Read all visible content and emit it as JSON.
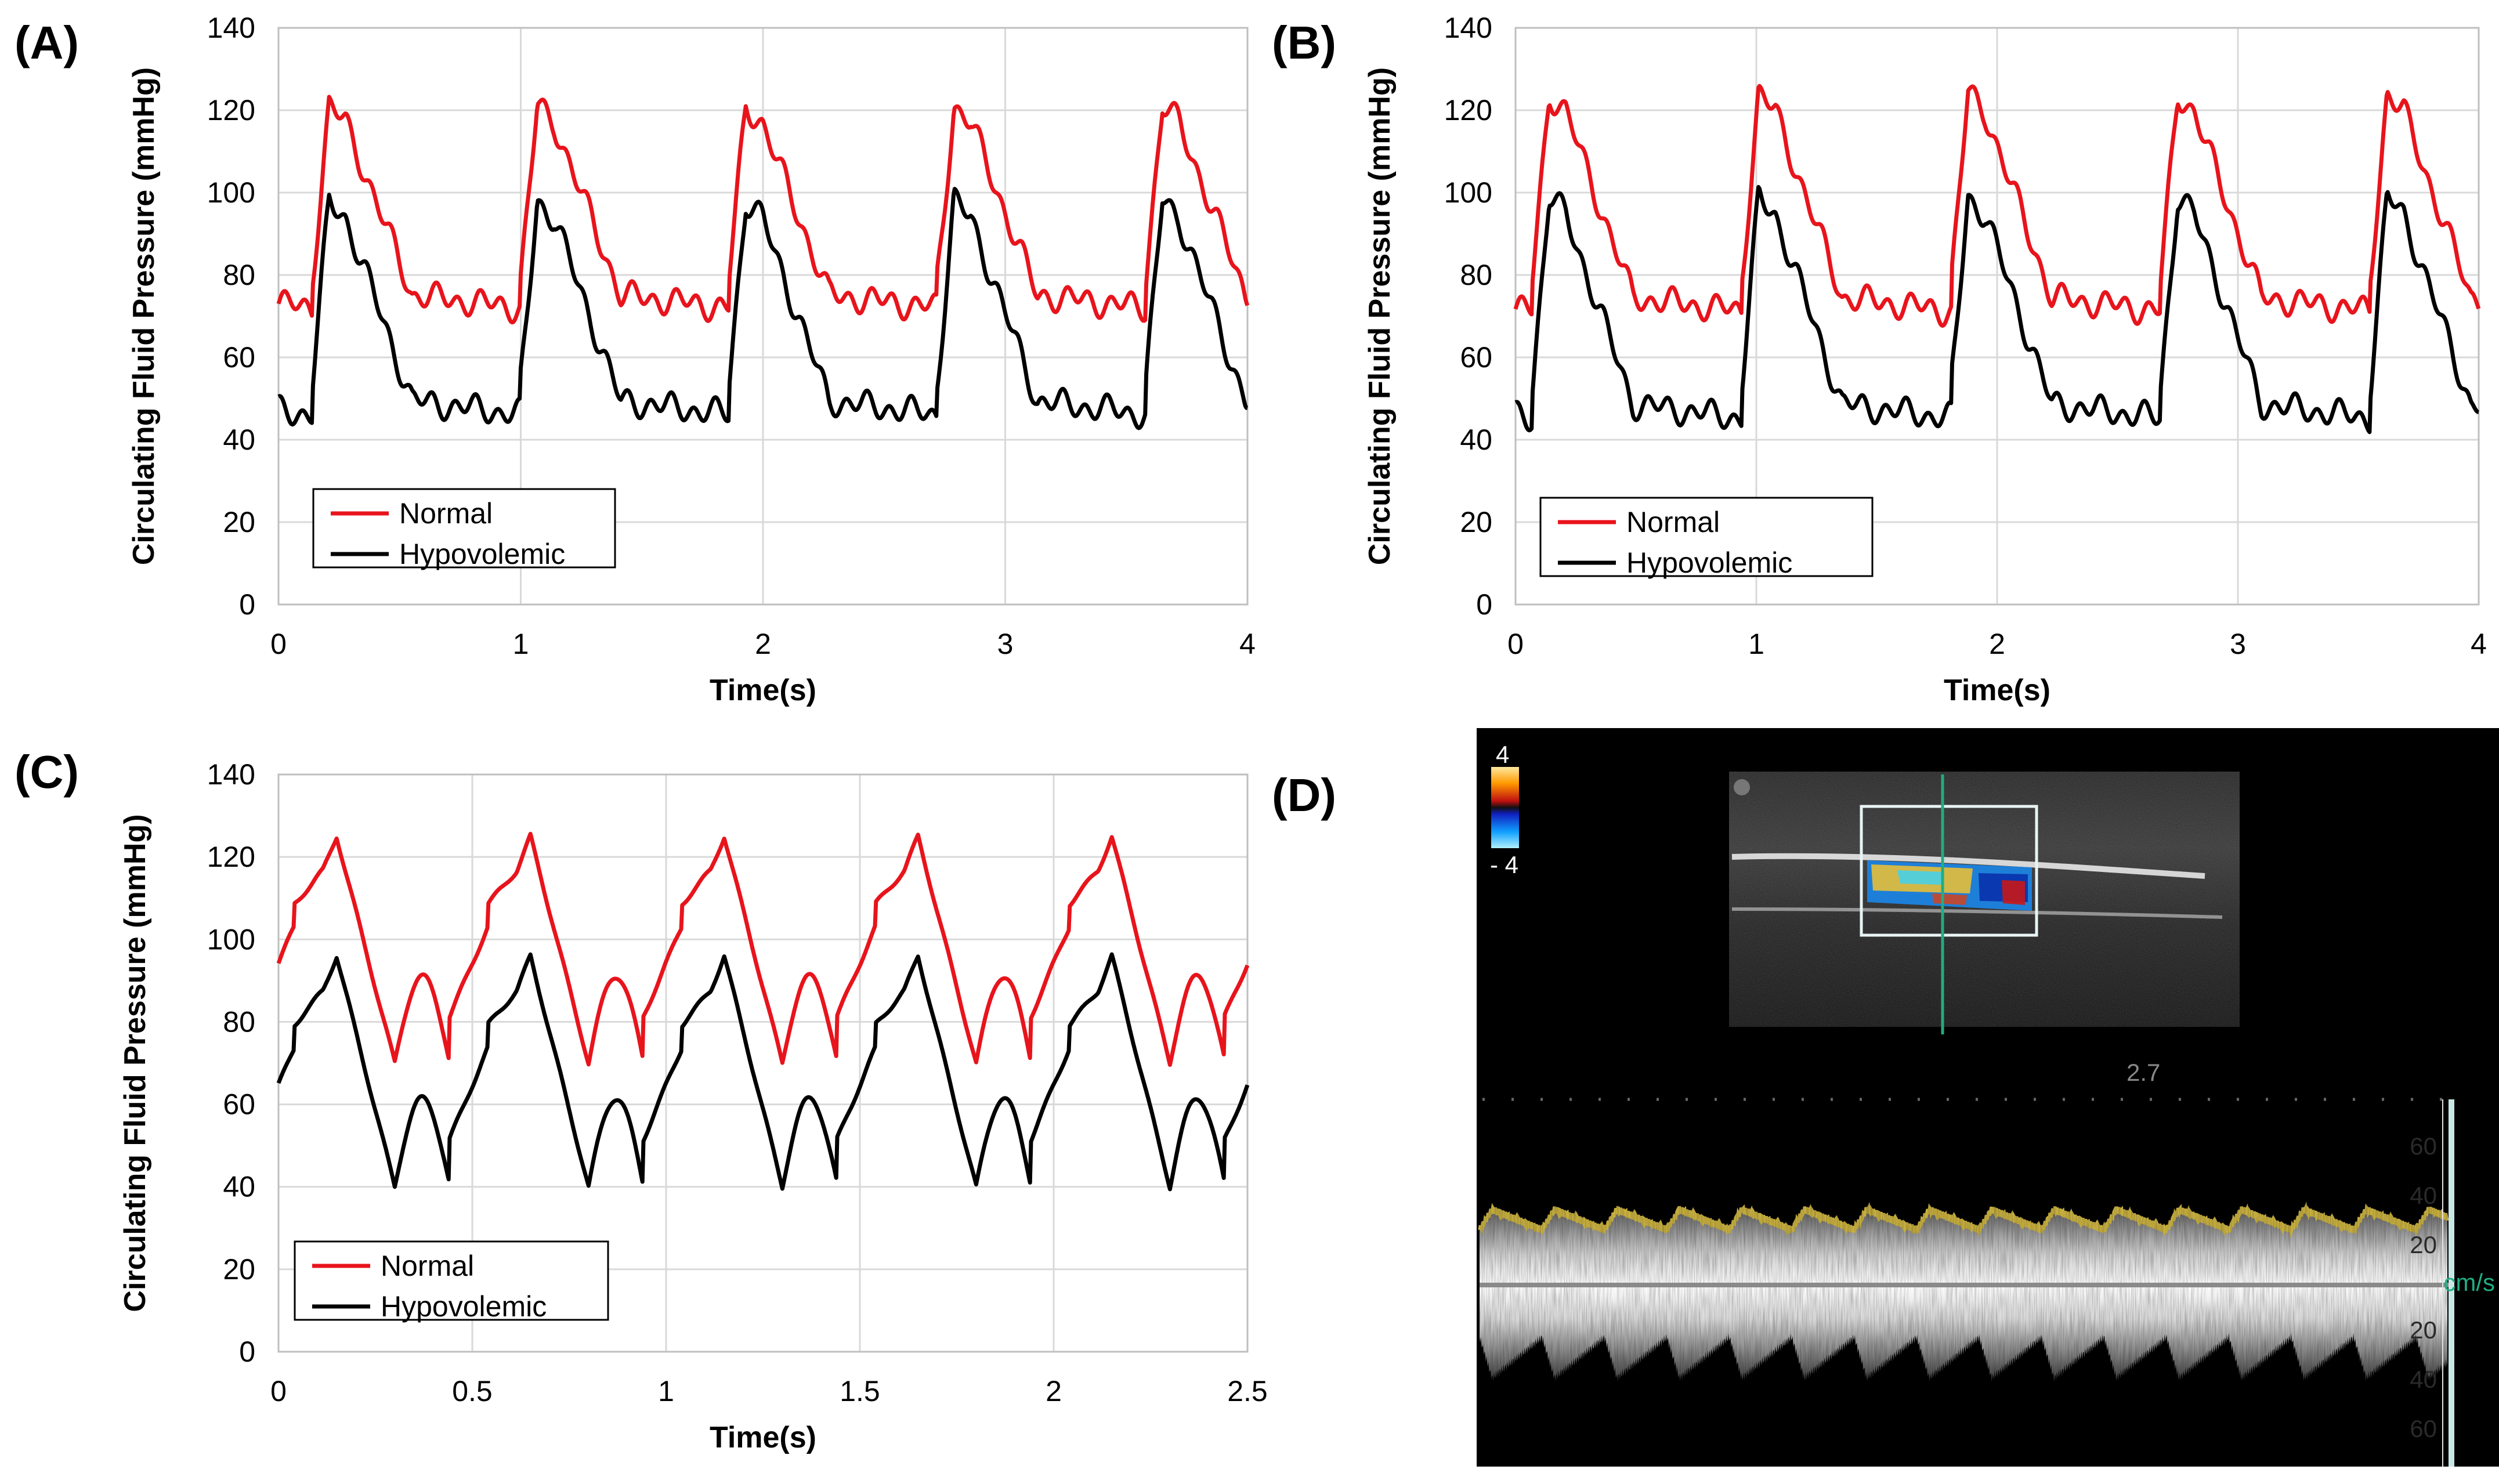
{
  "panels": [
    {
      "label": "(A)"
    },
    {
      "label": "(B)"
    },
    {
      "label": "(C)"
    },
    {
      "label": "(D)"
    }
  ],
  "chart_data": [
    {
      "panel": "(A)",
      "type": "line",
      "xlabel": "Time(s)",
      "ylabel": "Circulating Fluid Pressure (mmHg)",
      "xlim": [
        0,
        4
      ],
      "ylim": [
        0,
        140
      ],
      "xticks": [
        "0",
        "1",
        "2",
        "3",
        "4"
      ],
      "yticks": [
        "0",
        "20",
        "40",
        "60",
        "80",
        "100",
        "120",
        "140"
      ],
      "grid": true,
      "legend": {
        "position": "bottom-left",
        "entries": [
          "Normal",
          "Hypovolemic"
        ]
      },
      "waveform": {
        "period": 0.86,
        "phase": -0.72
      },
      "series": [
        {
          "name": "Normal",
          "color": "#e8141c",
          "min": 70,
          "max": 121
        },
        {
          "name": "Hypovolemic",
          "color": "#000000",
          "min": 44,
          "max": 98
        }
      ]
    },
    {
      "panel": "(B)",
      "type": "line",
      "xlabel": "Time(s)",
      "ylabel": "Circulating Fluid Pressure (mmHg)",
      "xlim": [
        0,
        4
      ],
      "ylim": [
        0,
        140
      ],
      "xticks": [
        "0",
        "1",
        "2",
        "3",
        "4"
      ],
      "yticks": [
        "0",
        "20",
        "40",
        "60",
        "80",
        "100",
        "120",
        "140"
      ],
      "grid": true,
      "legend": {
        "position": "bottom-left",
        "entries": [
          "Normal",
          "Hypovolemic"
        ]
      },
      "waveform": {
        "period": 0.87,
        "phase": -0.8
      },
      "series": [
        {
          "name": "Normal",
          "color": "#e8141c",
          "min": 69,
          "max": 124
        },
        {
          "name": "Hypovolemic",
          "color": "#000000",
          "min": 43,
          "max": 99
        }
      ]
    },
    {
      "panel": "(C)",
      "type": "line",
      "xlabel": "Time(s)",
      "ylabel": "Circulating Fluid Pressure (mmHg)",
      "xlim": [
        0,
        2.5
      ],
      "ylim": [
        0,
        140
      ],
      "xticks": [
        "0",
        "0.5",
        "1",
        "1.5",
        "2",
        "2.5"
      ],
      "yticks": [
        "0",
        "20",
        "40",
        "60",
        "80",
        "100",
        "120",
        "140"
      ],
      "grid": true,
      "legend": {
        "position": "bottom-left",
        "entries": [
          "Normal",
          "Hypovolemic"
        ]
      },
      "waveform": {
        "period": 0.5,
        "phase": -0.46,
        "style": "dicrotic"
      },
      "series": [
        {
          "name": "Normal",
          "color": "#e8141c",
          "min": 70,
          "max": 125
        },
        {
          "name": "Hypovolemic",
          "color": "#000000",
          "min": 40,
          "max": 96
        }
      ]
    }
  ],
  "ultrasound": {
    "colorbar_top": "4",
    "colorbar_bottom": "- 4",
    "depth_readout": "2.7",
    "velocity_unit": "cm/s",
    "scale_labels": [
      "60",
      "40",
      "20",
      "20",
      "40",
      "60"
    ]
  }
}
